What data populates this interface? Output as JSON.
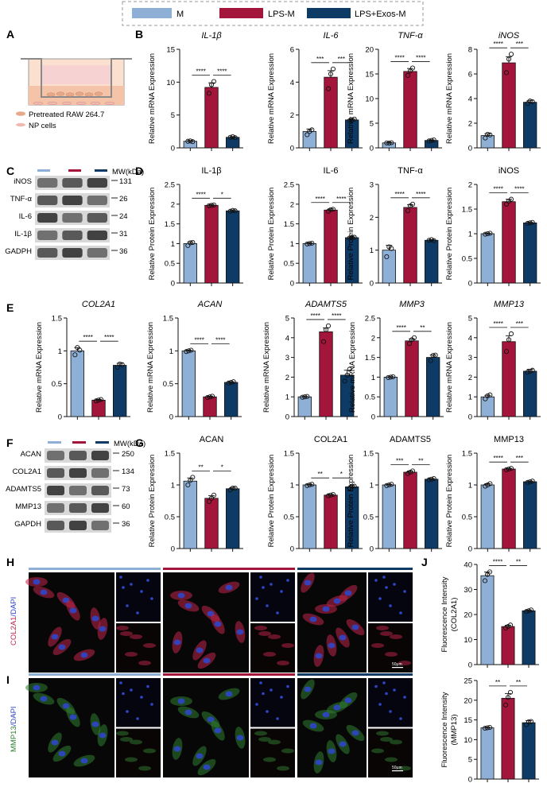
{
  "colors": {
    "M": "#8fb0d6",
    "LPS": "#a3153a",
    "EXO": "#0d3b66",
    "blot_dark": "#1a1a1a",
    "dapi": "#2f46c8",
    "col2": "#c0254a",
    "mmp": "#2f7d32"
  },
  "legend": {
    "items": [
      "M",
      "LPS-M",
      "LPS+Exos-M"
    ]
  },
  "panel_labels": {
    "A": "A",
    "B": "B",
    "C": "C",
    "D": "D",
    "E": "E",
    "F": "F",
    "G": "G",
    "H": "H",
    "I": "I",
    "J": "J"
  },
  "panel_A": {
    "legend1": "Pretreated RAW 264.7",
    "legend2": "NP cells"
  },
  "blot_C": {
    "header": "MW(kDa)",
    "rows": [
      {
        "name": "iNOS",
        "mw": "131"
      },
      {
        "name": "TNF-α",
        "mw": "26"
      },
      {
        "name": "IL-6",
        "mw": "24"
      },
      {
        "name": "IL-1β",
        "mw": "31"
      },
      {
        "name": "GADPH",
        "mw": "36"
      }
    ]
  },
  "blot_F": {
    "header": "MW(kDa)",
    "rows": [
      {
        "name": "ACAN",
        "mw": "250"
      },
      {
        "name": "COL2A1",
        "mw": "134"
      },
      {
        "name": "ADAMTS5",
        "mw": "73"
      },
      {
        "name": "MMP13",
        "mw": "60"
      },
      {
        "name": "GAPDH",
        "mw": "36"
      }
    ]
  },
  "micro_H": {
    "ylabel_red": "COL2A1",
    "ylabel_blue": "/DAPI",
    "scale": "50μm"
  },
  "micro_I": {
    "ylabel_green": "MMP13",
    "ylabel_blue": "/DAPI",
    "scale": "50μm"
  },
  "chart_data": [
    {
      "type": "bar",
      "panel": "B",
      "title": "IL-1β",
      "italic": true,
      "ylabel": "Relative mRNA Expression",
      "categories": [
        "M",
        "LPS-M",
        "LPS+Exos-M"
      ],
      "values": [
        1.0,
        9.2,
        1.6
      ],
      "errors": [
        0.1,
        0.7,
        0.1
      ],
      "points": [
        [
          1.0,
          1.05,
          0.95
        ],
        [
          8.3,
          9.6,
          10.1
        ],
        [
          1.6,
          1.7,
          1.55
        ]
      ],
      "ylim": [
        0,
        15
      ],
      "ticks": [
        0,
        5,
        10,
        15
      ],
      "sig": [
        {
          "label": "****",
          "from": 0,
          "to": 1
        },
        {
          "label": "****",
          "from": 1,
          "to": 2
        }
      ]
    },
    {
      "type": "bar",
      "panel": "B",
      "title": "IL-6",
      "italic": true,
      "ylabel": "Relative mRNA Expression",
      "categories": [
        "M",
        "LPS-M",
        "LPS+Exos-M"
      ],
      "values": [
        1.0,
        4.3,
        1.7
      ],
      "errors": [
        0.15,
        0.4,
        0.05
      ],
      "points": [
        [
          0.8,
          1.0,
          1.1
        ],
        [
          3.6,
          4.5,
          4.8
        ],
        [
          1.65,
          1.7,
          1.75
        ]
      ],
      "ylim": [
        0,
        6
      ],
      "ticks": [
        0,
        2,
        4,
        6
      ],
      "sig": [
        {
          "label": "***",
          "from": 0,
          "to": 1
        },
        {
          "label": "***",
          "from": 1,
          "to": 2
        }
      ]
    },
    {
      "type": "bar",
      "panel": "B",
      "title": "TNF-α",
      "italic": true,
      "ylabel": "Relative mRNA Expression",
      "categories": [
        "M",
        "LPS-M",
        "LPS+Exos-M"
      ],
      "values": [
        1.0,
        15.5,
        1.5
      ],
      "errors": [
        0.1,
        0.6,
        0.1
      ],
      "points": [
        [
          1.0,
          0.95,
          1.05
        ],
        [
          14.7,
          15.6,
          16.2
        ],
        [
          1.4,
          1.5,
          1.6
        ]
      ],
      "ylim": [
        0,
        20
      ],
      "ticks": [
        0,
        5,
        10,
        15,
        20
      ],
      "sig": [
        {
          "label": "****",
          "from": 0,
          "to": 1
        },
        {
          "label": "****",
          "from": 1,
          "to": 2
        }
      ]
    },
    {
      "type": "bar",
      "panel": "B",
      "title": "iNOS",
      "italic": true,
      "ylabel": "Relative mRNA Expression",
      "categories": [
        "M",
        "LPS-M",
        "LPS+Exos-M"
      ],
      "values": [
        1.0,
        6.9,
        3.7
      ],
      "errors": [
        0.15,
        0.5,
        0.15
      ],
      "points": [
        [
          0.8,
          1.1,
          1.05
        ],
        [
          6.1,
          7.2,
          7.6
        ],
        [
          3.6,
          3.8,
          3.75
        ]
      ],
      "ylim": [
        0,
        8
      ],
      "ticks": [
        0,
        2,
        4,
        6,
        8
      ],
      "sig": [
        {
          "label": "****",
          "from": 0,
          "to": 1
        },
        {
          "label": "***",
          "from": 1,
          "to": 2
        }
      ]
    },
    {
      "type": "bar",
      "panel": "D",
      "title": "IL-1β",
      "italic": false,
      "ylabel": "Relative Protein Expression",
      "categories": [
        "M",
        "LPS-M",
        "LPS+Exos-M"
      ],
      "values": [
        1.0,
        1.97,
        1.83
      ],
      "errors": [
        0.04,
        0.02,
        0.02
      ],
      "points": [
        [
          0.95,
          1.02,
          1.03
        ],
        [
          1.96,
          1.97,
          1.98
        ],
        [
          1.82,
          1.84,
          1.83
        ]
      ],
      "ylim": [
        0,
        2.5
      ],
      "ticks": [
        0,
        0.5,
        1.0,
        1.5,
        2.0,
        2.5
      ],
      "sig": [
        {
          "label": "****",
          "from": 0,
          "to": 1
        },
        {
          "label": "*",
          "from": 1,
          "to": 2
        }
      ]
    },
    {
      "type": "bar",
      "panel": "D",
      "title": "IL-6",
      "italic": false,
      "ylabel": "Relative Protein Expression",
      "categories": [
        "M",
        "LPS-M",
        "LPS+Exos-M"
      ],
      "values": [
        1.0,
        1.85,
        1.15
      ],
      "errors": [
        0.02,
        0.03,
        0.02
      ],
      "points": [
        [
          0.99,
          1.0,
          1.01
        ],
        [
          1.82,
          1.86,
          1.87
        ],
        [
          1.14,
          1.15,
          1.16
        ]
      ],
      "ylim": [
        0,
        2.5
      ],
      "ticks": [
        0,
        0.5,
        1.0,
        1.5,
        2.0,
        2.5
      ],
      "sig": [
        {
          "label": "****",
          "from": 0,
          "to": 1
        },
        {
          "label": "****",
          "from": 1,
          "to": 2
        }
      ]
    },
    {
      "type": "bar",
      "panel": "D",
      "title": "TNF-α",
      "italic": false,
      "ylabel": "Relative Protein Expression",
      "categories": [
        "M",
        "LPS-M",
        "LPS+Exos-M"
      ],
      "values": [
        1.0,
        2.3,
        1.3
      ],
      "errors": [
        0.15,
        0.08,
        0.02
      ],
      "points": [
        [
          0.8,
          1.1,
          1.05
        ],
        [
          2.2,
          2.35,
          2.4
        ],
        [
          1.3,
          1.32,
          1.29
        ]
      ],
      "ylim": [
        0,
        3
      ],
      "ticks": [
        0,
        1,
        2,
        3
      ],
      "sig": [
        {
          "label": "****",
          "from": 0,
          "to": 1
        },
        {
          "label": "****",
          "from": 1,
          "to": 2
        }
      ]
    },
    {
      "type": "bar",
      "panel": "D",
      "title": "iNOS",
      "italic": false,
      "ylabel": "Relative Protein Expression",
      "categories": [
        "M",
        "LPS-M",
        "LPS+Exos-M"
      ],
      "values": [
        1.0,
        1.65,
        1.22
      ],
      "errors": [
        0.01,
        0.05,
        0.01
      ],
      "points": [
        [
          0.99,
          1.0,
          1.01
        ],
        [
          1.6,
          1.66,
          1.7
        ],
        [
          1.21,
          1.22,
          1.23
        ]
      ],
      "ylim": [
        0,
        2.0
      ],
      "ticks": [
        0,
        0.5,
        1.0,
        1.5,
        2.0
      ],
      "sig": [
        {
          "label": "****",
          "from": 0,
          "to": 1
        },
        {
          "label": "****",
          "from": 1,
          "to": 2
        }
      ]
    },
    {
      "type": "bar",
      "panel": "E",
      "title": "COL2A1",
      "italic": true,
      "ylabel": "Relative mRNA Expression",
      "categories": [
        "M",
        "LPS-M",
        "LPS+Exos-M"
      ],
      "values": [
        1.0,
        0.25,
        0.78
      ],
      "errors": [
        0.05,
        0.01,
        0.03
      ],
      "points": [
        [
          0.94,
          1.05,
          1.01
        ],
        [
          0.24,
          0.25,
          0.26
        ],
        [
          0.75,
          0.8,
          0.79
        ]
      ],
      "ylim": [
        0,
        1.5
      ],
      "ticks": [
        0,
        0.5,
        1.0,
        1.5
      ],
      "sig": [
        {
          "label": "****",
          "from": 0,
          "to": 1
        },
        {
          "label": "****",
          "from": 1,
          "to": 2
        }
      ]
    },
    {
      "type": "bar",
      "panel": "E",
      "title": "ACAN",
      "italic": true,
      "ylabel": "Relative mRNA Expression",
      "categories": [
        "M",
        "LPS-M",
        "LPS+Exos-M"
      ],
      "values": [
        1.0,
        0.3,
        0.52
      ],
      "errors": [
        0.01,
        0.01,
        0.01
      ],
      "points": [
        [
          0.99,
          1.0,
          1.01
        ],
        [
          0.29,
          0.3,
          0.31
        ],
        [
          0.51,
          0.52,
          0.53
        ]
      ],
      "ylim": [
        0,
        1.5
      ],
      "ticks": [
        0,
        0.5,
        1.0,
        1.5
      ],
      "sig": [
        {
          "label": "****",
          "from": 0,
          "to": 1
        },
        {
          "label": "****",
          "from": 1,
          "to": 2
        }
      ]
    },
    {
      "type": "bar",
      "panel": "E",
      "title": "ADAMTS5",
      "italic": true,
      "ylabel": "Relative mRNA Expression",
      "categories": [
        "M",
        "LPS-M",
        "LPS+Exos-M"
      ],
      "values": [
        1.0,
        4.3,
        2.1
      ],
      "errors": [
        0.02,
        0.2,
        0.25
      ],
      "points": [
        [
          0.98,
          1.0,
          1.02
        ],
        [
          3.8,
          4.4,
          4.6
        ],
        [
          1.8,
          2.1,
          2.4
        ]
      ],
      "ylim": [
        0,
        5
      ],
      "ticks": [
        0,
        1,
        2,
        3,
        4,
        5
      ],
      "sig": [
        {
          "label": "****",
          "from": 0,
          "to": 1
        },
        {
          "label": "****",
          "from": 1,
          "to": 2
        }
      ]
    },
    {
      "type": "bar",
      "panel": "E",
      "title": "MMP3",
      "italic": true,
      "ylabel": "Relative mRNA Expression",
      "categories": [
        "M",
        "LPS-M",
        "LPS+Exos-M"
      ],
      "values": [
        1.0,
        1.92,
        1.5
      ],
      "errors": [
        0.01,
        0.05,
        0.06
      ],
      "points": [
        [
          0.99,
          1.0,
          1.01
        ],
        [
          1.85,
          1.95,
          2.0
        ],
        [
          1.42,
          1.55,
          1.56
        ]
      ],
      "ylim": [
        0,
        2.5
      ],
      "ticks": [
        0,
        0.5,
        1.0,
        1.5,
        2.0,
        2.5
      ],
      "sig": [
        {
          "label": "****",
          "from": 0,
          "to": 1
        },
        {
          "label": "**",
          "from": 1,
          "to": 2
        }
      ]
    },
    {
      "type": "bar",
      "panel": "E",
      "title": "MMP13",
      "italic": true,
      "ylabel": "Relative mRNA Expression",
      "categories": [
        "M",
        "LPS-M",
        "LPS+Exos-M"
      ],
      "values": [
        1.0,
        3.8,
        2.3
      ],
      "errors": [
        0.08,
        0.3,
        0.1
      ],
      "points": [
        [
          0.9,
          1.05,
          1.1
        ],
        [
          3.3,
          3.9,
          4.2
        ],
        [
          2.25,
          2.3,
          2.35
        ]
      ],
      "ylim": [
        0,
        5
      ],
      "ticks": [
        0,
        1,
        2,
        3,
        4,
        5
      ],
      "sig": [
        {
          "label": "****",
          "from": 0,
          "to": 1
        },
        {
          "label": "***",
          "from": 1,
          "to": 2
        }
      ]
    },
    {
      "type": "bar",
      "panel": "G",
      "title": "ACAN",
      "italic": false,
      "ylabel": "Relative Protein Expression",
      "categories": [
        "M",
        "LPS-M",
        "LPS+Exos-M"
      ],
      "values": [
        1.06,
        0.79,
        0.94
      ],
      "errors": [
        0.05,
        0.04,
        0.02
      ],
      "points": [
        [
          1.0,
          1.07,
          1.12
        ],
        [
          0.74,
          0.79,
          0.84
        ],
        [
          0.92,
          0.95,
          0.95
        ]
      ],
      "ylim": [
        0,
        1.5
      ],
      "ticks": [
        0,
        0.5,
        1.0,
        1.5
      ],
      "sig": [
        {
          "label": "**",
          "from": 0,
          "to": 1
        },
        {
          "label": "*",
          "from": 1,
          "to": 2
        }
      ]
    },
    {
      "type": "bar",
      "panel": "G",
      "title": "COL2A1",
      "italic": false,
      "ylabel": "Relative Protein Expression",
      "categories": [
        "M",
        "LPS-M",
        "LPS+Exos-M"
      ],
      "values": [
        1.0,
        0.84,
        0.97
      ],
      "errors": [
        0.01,
        0.01,
        0.02
      ],
      "points": [
        [
          0.99,
          1.0,
          1.01
        ],
        [
          0.83,
          0.84,
          0.85
        ],
        [
          0.95,
          0.98,
          0.98
        ]
      ],
      "ylim": [
        0,
        1.5
      ],
      "ticks": [
        0,
        0.5,
        1.0,
        1.5
      ],
      "sig": [
        {
          "label": "**",
          "from": 0,
          "to": 1
        },
        {
          "label": "*",
          "from": 1,
          "to": 2
        }
      ]
    },
    {
      "type": "bar",
      "panel": "G",
      "title": "ADAMTS5",
      "italic": false,
      "ylabel": "Relative Protein Expression",
      "categories": [
        "M",
        "LPS-M",
        "LPS+Exos-M"
      ],
      "values": [
        1.0,
        1.2,
        1.09
      ],
      "errors": [
        0.01,
        0.02,
        0.01
      ],
      "points": [
        [
          0.99,
          1.0,
          1.01
        ],
        [
          1.18,
          1.2,
          1.22
        ],
        [
          1.08,
          1.09,
          1.1
        ]
      ],
      "ylim": [
        0,
        1.5
      ],
      "ticks": [
        0,
        0.5,
        1.0,
        1.5
      ],
      "sig": [
        {
          "label": "***",
          "from": 0,
          "to": 1
        },
        {
          "label": "**",
          "from": 1,
          "to": 2
        }
      ]
    },
    {
      "type": "bar",
      "panel": "G",
      "title": "MMP13",
      "italic": false,
      "ylabel": "Relative Protein Expression",
      "categories": [
        "M",
        "LPS-M",
        "LPS+Exos-M"
      ],
      "values": [
        1.0,
        1.25,
        1.05
      ],
      "errors": [
        0.02,
        0.01,
        0.01
      ],
      "points": [
        [
          0.98,
          1.0,
          1.02
        ],
        [
          1.24,
          1.25,
          1.26
        ],
        [
          1.04,
          1.05,
          1.06
        ]
      ],
      "ylim": [
        0,
        1.5
      ],
      "ticks": [
        0,
        0.5,
        1.0,
        1.5
      ],
      "sig": [
        {
          "label": "****",
          "from": 0,
          "to": 1
        },
        {
          "label": "***",
          "from": 1,
          "to": 2
        }
      ]
    },
    {
      "type": "bar",
      "panel": "J",
      "title": "",
      "italic": false,
      "ylabel": "Fluorescence Intensity",
      "ylabel2": "(COL2A1)",
      "categories": [
        "M",
        "LPS-M",
        "LPS+Exos-M"
      ],
      "values": [
        35.5,
        15.2,
        21.5
      ],
      "errors": [
        1.5,
        0.5,
        0.3
      ],
      "points": [
        [
          33.5,
          36.0,
          37.0
        ],
        [
          14.6,
          15.2,
          15.8
        ],
        [
          21.2,
          21.5,
          21.8
        ]
      ],
      "ylim": [
        0,
        40
      ],
      "ticks": [
        0,
        10,
        20,
        30,
        40
      ],
      "sig": [
        {
          "label": "****",
          "from": 0,
          "to": 1
        },
        {
          "label": "**",
          "from": 1,
          "to": 2
        }
      ]
    },
    {
      "type": "bar",
      "panel": "J",
      "title": "",
      "italic": false,
      "ylabel": "Fluorescence Intensity",
      "ylabel2": "(MMP13)",
      "categories": [
        "M",
        "LPS-M",
        "LPS+Exos-M"
      ],
      "values": [
        13.0,
        20.5,
        14.3
      ],
      "errors": [
        0.1,
        1.2,
        0.5
      ],
      "points": [
        [
          12.9,
          13.0,
          13.1
        ],
        [
          18.8,
          20.7,
          22.0
        ],
        [
          13.8,
          14.5,
          14.6
        ]
      ],
      "ylim": [
        0,
        25
      ],
      "ticks": [
        0,
        5,
        10,
        15,
        20,
        25
      ],
      "sig": [
        {
          "label": "**",
          "from": 0,
          "to": 1
        },
        {
          "label": "**",
          "from": 1,
          "to": 2
        }
      ]
    }
  ]
}
